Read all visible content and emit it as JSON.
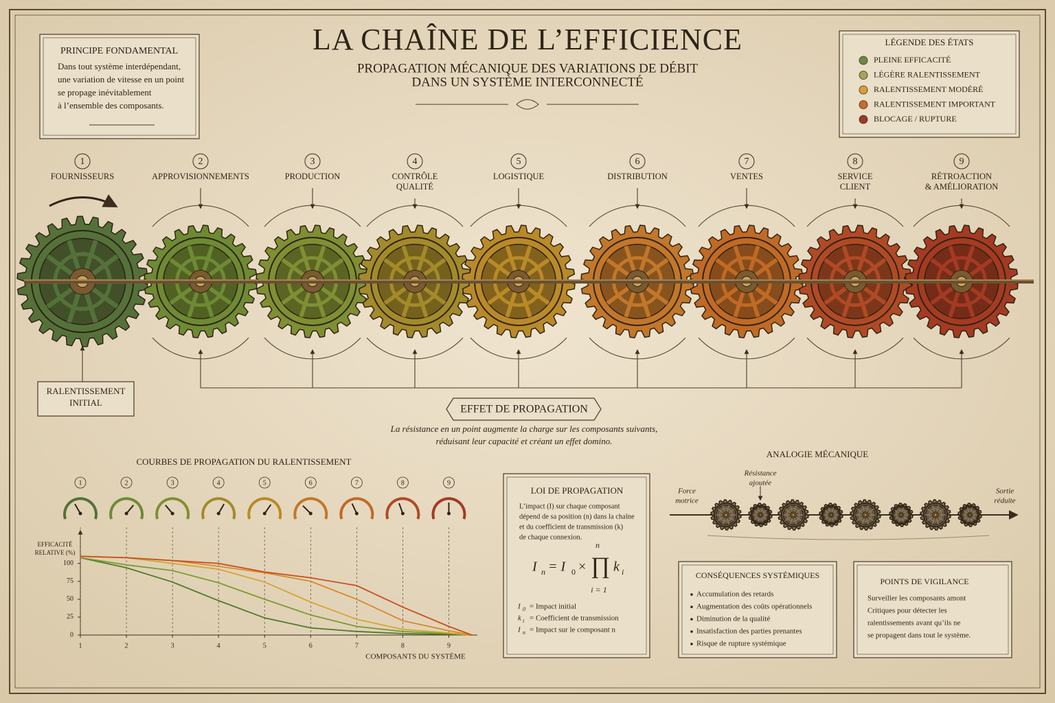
{
  "header": {
    "title": "LA CHAÎNE DE L’EFFICIENCE",
    "subtitle": [
      "PROPAGATION MÉCANIQUE DES VARIATIONS DE DÉBIT",
      "DANS UN SYSTÈME INTERCONNECTÉ"
    ]
  },
  "principle": {
    "title": "PRINCIPE FONDAMENTAL",
    "lines": [
      "Dans tout système interdépendant,",
      "une variation de vitesse en un point",
      "se propage inévitablement",
      "à l’ensemble des composants."
    ]
  },
  "legend": {
    "title": "LÉGENDE DES ÉTATS",
    "items": [
      {
        "label": "PLEINE EFFICACITÉ",
        "color": "#6b8a45"
      },
      {
        "label": "LÉGÈRE RALENTISSEMENT",
        "color": "#a7a25a"
      },
      {
        "label": "RALENTISSEMENT MODÉRÉ",
        "color": "#d6a13a"
      },
      {
        "label": "RALENTISSEMENT IMPORTANT",
        "color": "#c96a2a"
      },
      {
        "label": "BLOCAGE / RUPTURE",
        "color": "#9c3a25"
      }
    ]
  },
  "stages": [
    {
      "number": "1",
      "label": [
        "FOURNISSEURS"
      ],
      "color": "#55713a"
    },
    {
      "number": "2",
      "label": [
        "APPROVISIONNEMENTS"
      ],
      "color": "#6e8a34"
    },
    {
      "number": "3",
      "label": [
        "PRODUCTION"
      ],
      "color": "#7f8f33"
    },
    {
      "number": "4",
      "label": [
        "CONTRÔLE",
        "QUALITÉ"
      ],
      "color": "#a38a2a"
    },
    {
      "number": "5",
      "label": [
        "LOGISTIQUE"
      ],
      "color": "#b98a28"
    },
    {
      "number": "6",
      "label": [
        "DISTRIBUTION"
      ],
      "color": "#c2772a"
    },
    {
      "number": "7",
      "label": [
        "VENTES"
      ],
      "color": "#c06a25"
    },
    {
      "number": "8",
      "label": [
        "SERVICE",
        "CLIENT"
      ],
      "color": "#b04a25"
    },
    {
      "number": "9",
      "label": [
        "RÉTROACTION",
        "& AMÉLIORATION"
      ],
      "color": "#a43a22"
    }
  ],
  "initial": [
    "RALENTISSEMENT",
    "INITIAL"
  ],
  "propagation": {
    "title": "EFFET DE PROPAGATION",
    "lines": [
      "La résistance en un point augmente la charge sur les composants suivants,",
      "réduisant leur capacité et créant un effet domino."
    ]
  },
  "gauges": [
    "1",
    "2",
    "3",
    "4",
    "5",
    "6",
    "7",
    "8",
    "9"
  ],
  "chart_data": {
    "type": "line",
    "title": "COURBES DE PROPAGATION DU RALENTISSEMENT",
    "xlabel": "COMPOSANTS DU SYSTÈME",
    "ylabel": [
      "EFFICACITÉ",
      "RELATIVE (%)"
    ],
    "x": [
      1,
      2,
      3,
      4,
      5,
      6,
      7,
      8,
      9,
      9.5
    ],
    "xlim": [
      1,
      9.5
    ],
    "xticks": [
      1,
      2,
      3,
      4,
      5,
      6,
      7,
      8,
      9
    ],
    "ylim": [
      0,
      140
    ],
    "yticks": [
      0,
      25,
      50,
      75,
      100
    ],
    "series": [
      {
        "color": "#4f7a2a",
        "values": [
          108,
          94,
          74,
          48,
          24,
          10,
          5,
          2,
          1,
          0
        ]
      },
      {
        "color": "#7b9a32",
        "values": [
          108,
          98,
          90,
          73,
          50,
          28,
          12,
          5,
          2,
          0
        ]
      },
      {
        "color": "#d2a635",
        "values": [
          110,
          108,
          100,
          92,
          74,
          46,
          22,
          8,
          3,
          0
        ]
      },
      {
        "color": "#d88a2a",
        "values": [
          110,
          108,
          104,
          96,
          87,
          75,
          50,
          20,
          6,
          0
        ]
      },
      {
        "color": "#c6501f",
        "values": [
          110,
          108,
          104,
          100,
          88,
          80,
          69,
          39,
          12,
          0
        ]
      }
    ]
  },
  "law": {
    "title": "LOI DE PROPAGATION",
    "lines": [
      "L’impact (I) sur chaque composant",
      "dépend de sa position (n) dans la chaîne",
      "et du coefficient de transmission (k)",
      "de chaque connexion."
    ],
    "formula": {
      "lhs": "I",
      "lhs_sub": "n",
      "eq": "= I",
      "eq_sub": "0",
      "times": "×",
      "prod": "∏",
      "upper": "n",
      "lower": "i = 1",
      "k": "k",
      "k_sub": "i"
    },
    "definitions": [
      {
        "symbol": "I",
        "sub": "0",
        "text": "= Impact initial"
      },
      {
        "symbol": "k",
        "sub": "i",
        "text": "= Coefficient de transmission"
      },
      {
        "symbol": "I",
        "sub": "n",
        "text": "= Impact sur le composant n"
      }
    ]
  },
  "analogy": {
    "title": "ANALOGIE MÉCANIQUE",
    "input": [
      "Force",
      "motrice"
    ],
    "resistance": [
      "Résistance",
      "ajoutée"
    ],
    "output": [
      "Sortie",
      "réduite"
    ]
  },
  "consequences": {
    "title": "CONSÉQUENCES SYSTÉMIQUES",
    "items": [
      "Accumulation des retards",
      "Augmentation des coûts opérationnels",
      "Diminution de la qualité",
      "Insatisfaction des parties prenantes",
      "Risque de rupture systémique"
    ]
  },
  "vigilance": {
    "title": "POINTS DE VIGILANCE",
    "lines": [
      "Surveiller les composants amont",
      "Critiques pour détecter les",
      "ralentissements avant qu’ils ne",
      "se propagent dans tout le système."
    ]
  }
}
